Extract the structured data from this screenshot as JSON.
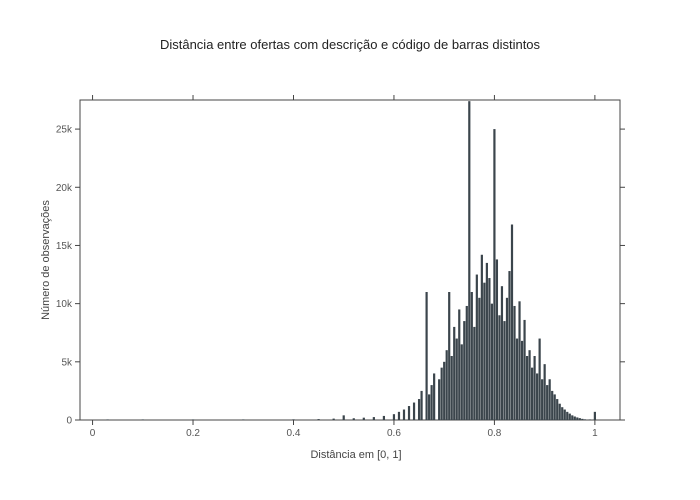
{
  "chart_data": {
    "type": "bar",
    "title": "Distância entre ofertas com descrição e código de barras distintos",
    "xlabel": "Distância em [0, 1]",
    "ylabel": "Número de observações",
    "xlim": [
      -0.025,
      1.05
    ],
    "ylim": [
      0,
      27500
    ],
    "xticks": [
      0,
      0.2,
      0.4,
      0.6,
      0.8,
      1
    ],
    "xtick_labels": [
      "0",
      "0.2",
      "0.4",
      "0.6",
      "0.8",
      "1"
    ],
    "yticks": [
      0,
      5000,
      10000,
      15000,
      20000,
      25000
    ],
    "ytick_labels": [
      "0",
      "5k",
      "10k",
      "15k",
      "20k",
      "25k"
    ],
    "bar_color": "#3b454c",
    "axis_color": "#444444",
    "grid": false,
    "bins": [
      {
        "x": 0.03,
        "y": 20
      },
      {
        "x": 0.1,
        "y": 20
      },
      {
        "x": 0.2,
        "y": 30
      },
      {
        "x": 0.3,
        "y": 40
      },
      {
        "x": 0.4,
        "y": 60
      },
      {
        "x": 0.45,
        "y": 80
      },
      {
        "x": 0.48,
        "y": 120
      },
      {
        "x": 0.5,
        "y": 400
      },
      {
        "x": 0.52,
        "y": 150
      },
      {
        "x": 0.54,
        "y": 200
      },
      {
        "x": 0.56,
        "y": 250
      },
      {
        "x": 0.58,
        "y": 350
      },
      {
        "x": 0.6,
        "y": 500
      },
      {
        "x": 0.61,
        "y": 700
      },
      {
        "x": 0.62,
        "y": 900
      },
      {
        "x": 0.63,
        "y": 1200
      },
      {
        "x": 0.64,
        "y": 1500
      },
      {
        "x": 0.65,
        "y": 1800
      },
      {
        "x": 0.655,
        "y": 2500
      },
      {
        "x": 0.665,
        "y": 11000
      },
      {
        "x": 0.67,
        "y": 2200
      },
      {
        "x": 0.675,
        "y": 3000
      },
      {
        "x": 0.68,
        "y": 4000
      },
      {
        "x": 0.69,
        "y": 3500
      },
      {
        "x": 0.695,
        "y": 4500
      },
      {
        "x": 0.7,
        "y": 5000
      },
      {
        "x": 0.705,
        "y": 6000
      },
      {
        "x": 0.71,
        "y": 11000
      },
      {
        "x": 0.715,
        "y": 5500
      },
      {
        "x": 0.72,
        "y": 8000
      },
      {
        "x": 0.725,
        "y": 7000
      },
      {
        "x": 0.73,
        "y": 9500
      },
      {
        "x": 0.735,
        "y": 6500
      },
      {
        "x": 0.74,
        "y": 8500
      },
      {
        "x": 0.745,
        "y": 9800
      },
      {
        "x": 0.75,
        "y": 27400
      },
      {
        "x": 0.755,
        "y": 11000
      },
      {
        "x": 0.76,
        "y": 8000
      },
      {
        "x": 0.765,
        "y": 12500
      },
      {
        "x": 0.77,
        "y": 10500
      },
      {
        "x": 0.775,
        "y": 14200
      },
      {
        "x": 0.78,
        "y": 11800
      },
      {
        "x": 0.785,
        "y": 13500
      },
      {
        "x": 0.79,
        "y": 12200
      },
      {
        "x": 0.795,
        "y": 10000
      },
      {
        "x": 0.8,
        "y": 25000
      },
      {
        "x": 0.805,
        "y": 13800
      },
      {
        "x": 0.81,
        "y": 9000
      },
      {
        "x": 0.815,
        "y": 11500
      },
      {
        "x": 0.82,
        "y": 8500
      },
      {
        "x": 0.825,
        "y": 10500
      },
      {
        "x": 0.83,
        "y": 12800
      },
      {
        "x": 0.835,
        "y": 16800
      },
      {
        "x": 0.84,
        "y": 9800
      },
      {
        "x": 0.845,
        "y": 7000
      },
      {
        "x": 0.85,
        "y": 10200
      },
      {
        "x": 0.855,
        "y": 6800
      },
      {
        "x": 0.86,
        "y": 8600
      },
      {
        "x": 0.865,
        "y": 5500
      },
      {
        "x": 0.87,
        "y": 6000
      },
      {
        "x": 0.875,
        "y": 4500
      },
      {
        "x": 0.88,
        "y": 5500
      },
      {
        "x": 0.885,
        "y": 4000
      },
      {
        "x": 0.89,
        "y": 7000
      },
      {
        "x": 0.895,
        "y": 3500
      },
      {
        "x": 0.9,
        "y": 4800
      },
      {
        "x": 0.905,
        "y": 3000
      },
      {
        "x": 0.91,
        "y": 3500
      },
      {
        "x": 0.915,
        "y": 2500
      },
      {
        "x": 0.92,
        "y": 2200
      },
      {
        "x": 0.925,
        "y": 1800
      },
      {
        "x": 0.93,
        "y": 1400
      },
      {
        "x": 0.935,
        "y": 1100
      },
      {
        "x": 0.94,
        "y": 900
      },
      {
        "x": 0.945,
        "y": 700
      },
      {
        "x": 0.95,
        "y": 550
      },
      {
        "x": 0.955,
        "y": 400
      },
      {
        "x": 0.96,
        "y": 300
      },
      {
        "x": 0.965,
        "y": 220
      },
      {
        "x": 0.97,
        "y": 160
      },
      {
        "x": 0.975,
        "y": 100
      },
      {
        "x": 0.98,
        "y": 60
      },
      {
        "x": 0.99,
        "y": 40
      },
      {
        "x": 1.0,
        "y": 700
      }
    ]
  }
}
